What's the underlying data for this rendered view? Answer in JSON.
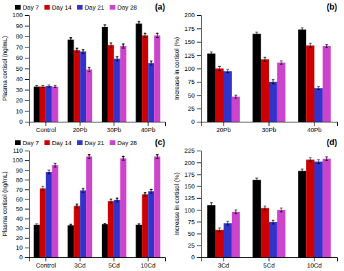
{
  "chart_data": [
    {
      "type": "bar",
      "title": "(a)",
      "y_label": "Plasma cortisol (ng/mL)",
      "categories": [
        "Control",
        "20Pb",
        "30Pb",
        "40Pb"
      ],
      "series": [
        {
          "name": "Day 7",
          "color": "black",
          "values": [
            33,
            77,
            89,
            92
          ],
          "errors": [
            1,
            2,
            2,
            2
          ]
        },
        {
          "name": "Day 14",
          "color": "#cc0000",
          "values": [
            33,
            67,
            72,
            81
          ],
          "errors": [
            1,
            2,
            2,
            2
          ]
        },
        {
          "name": "Day 21",
          "color": "#3333cc",
          "values": [
            33.5,
            66,
            59,
            55
          ],
          "errors": [
            1,
            2,
            2,
            2
          ]
        },
        {
          "name": "Day 28",
          "color": "#cc44cc",
          "values": [
            33,
            49,
            71,
            81
          ],
          "errors": [
            1,
            2,
            2,
            2
          ]
        }
      ],
      "ylim": [
        0,
        100
      ],
      "yticks": [
        0,
        10,
        20,
        30,
        40,
        50,
        60,
        70,
        80,
        90,
        100
      ],
      "grid": false,
      "legend": "upper left",
      "annotations": [
        {
          "text": "*",
          "category": "20Pb",
          "series": "Day 7"
        },
        {
          "text": "*",
          "category": "20Pb",
          "series": "Day 14"
        },
        {
          "text": "*",
          "category": "20Pb",
          "series": "Day 21"
        },
        {
          "text": "*",
          "category": "20Pb",
          "series": "Day 28"
        },
        {
          "text": "*",
          "category": "30Pb",
          "series": "Day 7"
        },
        {
          "text": "*",
          "category": "30Pb",
          "series": "Day 14"
        },
        {
          "text": "*",
          "category": "30Pb",
          "series": "Day 21"
        },
        {
          "text": "*",
          "category": "30Pb",
          "series": "Day 28"
        },
        {
          "text": "*",
          "category": "40Pb",
          "series": "Day 7"
        },
        {
          "text": "*",
          "category": "40Pb",
          "series": "Day 14"
        },
        {
          "text": "*",
          "category": "40Pb",
          "series": "Day 21"
        },
        {
          "text": "*",
          "category": "40Pb",
          "series": "Day 28"
        }
      ]
    },
    {
      "type": "bar",
      "title": "(b)",
      "y_label": "Increase in cortisol (%)",
      "categories": [
        "20Pb",
        "30Pb",
        "40Pb"
      ],
      "series": [
        {
          "name": "Day 7",
          "color": "black",
          "values": [
            128,
            165,
            173
          ],
          "errors": [
            3,
            3,
            3
          ]
        },
        {
          "name": "Day 14",
          "color": "#cc0000",
          "values": [
            100,
            117,
            143
          ],
          "errors": [
            4,
            4,
            4
          ]
        },
        {
          "name": "Day 21",
          "color": "#3333cc",
          "values": [
            95,
            75,
            63
          ],
          "errors": [
            3,
            4,
            3
          ]
        },
        {
          "name": "Day 28",
          "color": "#cc44cc",
          "values": [
            47,
            111,
            142
          ],
          "errors": [
            3,
            3,
            3
          ]
        }
      ],
      "ylim": [
        0,
        200
      ],
      "yticks": [
        0,
        25,
        50,
        75,
        100,
        125,
        150,
        175,
        200
      ],
      "grid": false
    },
    {
      "type": "bar",
      "title": "(c)",
      "y_label": "Plasma cortisol (ng/mL)",
      "categories": [
        "Control",
        "3Cd",
        "5Cd",
        "10Cd"
      ],
      "series": [
        {
          "name": "Day 7",
          "color": "black",
          "values": [
            33.5,
            33,
            34,
            33.5
          ],
          "errors": [
            1,
            1,
            1,
            1
          ]
        },
        {
          "name": "Day 14",
          "color": "#cc0000",
          "values": [
            71,
            53,
            58,
            65
          ],
          "errors": [
            2,
            2,
            2,
            2
          ]
        },
        {
          "name": "Day 21",
          "color": "#3333cc",
          "values": [
            88,
            69,
            59,
            68
          ],
          "errors": [
            2,
            2,
            2,
            2
          ]
        },
        {
          "name": "Day 28",
          "color": "#cc44cc",
          "values": [
            95,
            104,
            102,
            104
          ],
          "errors": [
            2,
            2,
            2,
            2
          ]
        }
      ],
      "ylim": [
        0,
        110
      ],
      "yticks": [
        0,
        10,
        20,
        30,
        40,
        50,
        60,
        70,
        80,
        90,
        100,
        110
      ],
      "grid": false,
      "legend": "upper left",
      "annotations": [
        {
          "text": "*",
          "category": "3Cd",
          "series": "Day 7"
        },
        {
          "text": "*",
          "category": "3Cd",
          "series": "Day 14"
        },
        {
          "text": "*",
          "category": "3Cd",
          "series": "Day 21"
        },
        {
          "text": "*",
          "category": "3Cd",
          "series": "Day 28"
        },
        {
          "text": "*",
          "category": "5Cd",
          "series": "Day 7"
        },
        {
          "text": "*",
          "category": "5Cd",
          "series": "Day 14"
        },
        {
          "text": "*",
          "category": "5Cd",
          "series": "Day 21"
        },
        {
          "text": "*",
          "category": "5Cd",
          "series": "Day 28"
        },
        {
          "text": "*",
          "category": "10Cd",
          "series": "Day 7"
        },
        {
          "text": "*",
          "category": "10Cd",
          "series": "Day 14"
        },
        {
          "text": "*",
          "category": "10Cd",
          "series": "Day 21"
        },
        {
          "text": "*",
          "category": "10Cd",
          "series": "Day 28"
        }
      ]
    },
    {
      "type": "bar",
      "title": "(d)",
      "y_label": "Increase in cortisol (%)",
      "categories": [
        "3Cd",
        "5Cd",
        "10Cd"
      ],
      "series": [
        {
          "name": "Day 7",
          "color": "black",
          "values": [
            110,
            163,
            182
          ],
          "errors": [
            5,
            4,
            4
          ]
        },
        {
          "name": "Day 14",
          "color": "#cc0000",
          "values": [
            58,
            104,
            206
          ],
          "errors": [
            4,
            4,
            4
          ]
        },
        {
          "name": "Day 21",
          "color": "#3333cc",
          "values": [
            72,
            74,
            202
          ],
          "errors": [
            4,
            4,
            4
          ]
        },
        {
          "name": "Day 28",
          "color": "#cc44cc",
          "values": [
            96,
            100,
            208
          ],
          "errors": [
            4,
            4,
            4
          ]
        }
      ],
      "ylim": [
        0,
        225
      ],
      "yticks": [
        0,
        25,
        50,
        75,
        100,
        125,
        150,
        175,
        200,
        225
      ],
      "grid": false
    }
  ]
}
